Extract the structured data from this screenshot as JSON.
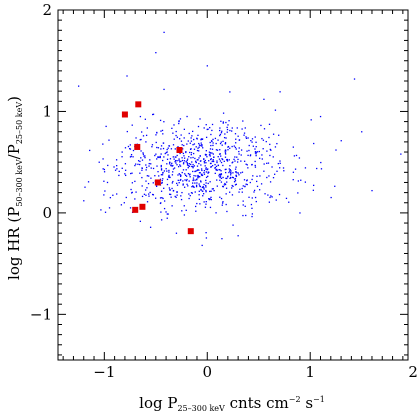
{
  "chart_data": {
    "type": "scatter",
    "title": "",
    "xlabel": {
      "main": "log P",
      "sub": "25–300 keV",
      "rest": " cnts cm",
      "exp1": "−2",
      "mid": " s",
      "exp2": "−1"
    },
    "ylabel": {
      "main": "log HR (P",
      "sub1": "50–300 keV",
      "slash": "/P",
      "sub2": "25–50 keV",
      "close": ")"
    },
    "xlim": [
      -1.45,
      1.95
    ],
    "ylim": [
      -1.45,
      2.0
    ],
    "xticks": [
      -1,
      0,
      1,
      2
    ],
    "xtick_labels": [
      "−1",
      "0",
      "1",
      "2"
    ],
    "yticks": [
      -1,
      0,
      1,
      2
    ],
    "ytick_labels": [
      "−1",
      "0",
      "1",
      "2"
    ],
    "grid": false,
    "legend": "none",
    "series": [
      {
        "marker": "dot",
        "color": "#0000ff",
        "cloud": {
          "count": 900,
          "x_center": -0.05,
          "x_spread": 0.42,
          "y_center": 0.45,
          "y_spread": 0.22,
          "seed": 7
        },
        "points": [
          [
            -1.25,
            1.25
          ],
          [
            -0.78,
            1.35
          ],
          [
            -0.5,
            1.58
          ],
          [
            0.0,
            1.45
          ],
          [
            -0.42,
            1.78
          ],
          [
            1.43,
            1.32
          ],
          [
            1.1,
            0.95
          ],
          [
            1.88,
            0.58
          ],
          [
            -1.2,
            0.12
          ],
          [
            -1.05,
            0.5
          ],
          [
            -0.95,
            0.05
          ],
          [
            -0.3,
            -0.2
          ],
          [
            -0.05,
            -0.32
          ],
          [
            0.25,
            -0.12
          ],
          [
            0.9,
            0.0
          ],
          [
            1.25,
            0.62
          ],
          [
            1.5,
            0.8
          ],
          [
            1.6,
            0.22
          ],
          [
            -0.65,
            0.95
          ],
          [
            0.55,
            1.12
          ]
        ]
      },
      {
        "marker": "square",
        "color": "#e00000",
        "points": [
          [
            -0.8,
            0.97
          ],
          [
            -0.67,
            1.07
          ],
          [
            -0.68,
            0.65
          ],
          [
            -0.27,
            0.62
          ],
          [
            -0.48,
            0.3
          ],
          [
            -0.7,
            0.03
          ],
          [
            -0.63,
            0.06
          ],
          [
            -0.16,
            -0.18
          ]
        ]
      }
    ]
  }
}
